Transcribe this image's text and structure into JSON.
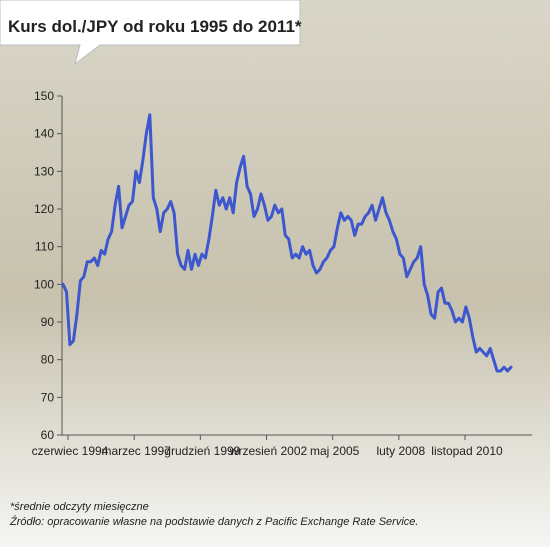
{
  "header": {
    "title": "Kurs dol./JPY od roku 1995 do 2011*"
  },
  "colors": {
    "line": "#3d57cf",
    "bg_top": "#d9d6c9",
    "bg_mid": "#c7c1ad",
    "bg_bottom": "#f5f5f3",
    "title_box": "#ffffff"
  },
  "chart_data": {
    "type": "line",
    "title": "Kurs dol./JPY od roku 1995 do 2011*",
    "xlabel": "",
    "ylabel": "",
    "ylim": [
      60,
      150
    ],
    "yticks": [
      60,
      70,
      80,
      90,
      100,
      110,
      120,
      130,
      140,
      150
    ],
    "xtick_labels": [
      "czerwiec 1994",
      "marzec 1997",
      "grudzień 1999",
      "wrzesień 2002",
      "maj 2005",
      "luty 2008",
      "listopad 2010"
    ],
    "grid": false,
    "series": [
      {
        "values": [
          100,
          98,
          84,
          85,
          92,
          101,
          102,
          106,
          106,
          107,
          105,
          109,
          108,
          112,
          114,
          121,
          126,
          115,
          118,
          121,
          122,
          130,
          127,
          133,
          140,
          145,
          123,
          120,
          114,
          119,
          120,
          122,
          119,
          108,
          105,
          104,
          109,
          104,
          108,
          105,
          108,
          107,
          112,
          118,
          125,
          121,
          123,
          120,
          123,
          119,
          127,
          131,
          134,
          126,
          124,
          118,
          120,
          124,
          121,
          117,
          118,
          121,
          119,
          120,
          113,
          112,
          107,
          108,
          107,
          110,
          108,
          109,
          105,
          103,
          104,
          106,
          107,
          109,
          110,
          115,
          119,
          117,
          118,
          117,
          113,
          116,
          116,
          118,
          119,
          121,
          117,
          120,
          123,
          119,
          117,
          114,
          112,
          108,
          107,
          102,
          104,
          106,
          107,
          110,
          100,
          97,
          92,
          91,
          98,
          99,
          95,
          95,
          93,
          90,
          91,
          90,
          94,
          91,
          86,
          82,
          83,
          82,
          81,
          83,
          80,
          77,
          77,
          78,
          77,
          78
        ]
      }
    ]
  },
  "footnotes": {
    "note": "*średnie odczyty miesięczne",
    "source": "Źródło: opracowanie własne na podstawie danych z Pacific Exchange Rate Service."
  }
}
